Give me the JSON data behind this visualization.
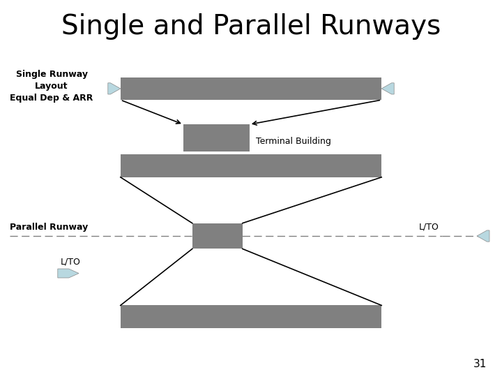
{
  "title": "Single and Parallel Runways",
  "title_fontsize": 28,
  "background_color": "#ffffff",
  "runway_color": "#808080",
  "arrow_color": "#b8d8e0",
  "label1": "Single Runway\nLayout\nEqual Dep & ARR",
  "label2": "Parallel Runway",
  "label_lto": "L/TO",
  "terminal_label": "Terminal Building",
  "page_number": "31"
}
